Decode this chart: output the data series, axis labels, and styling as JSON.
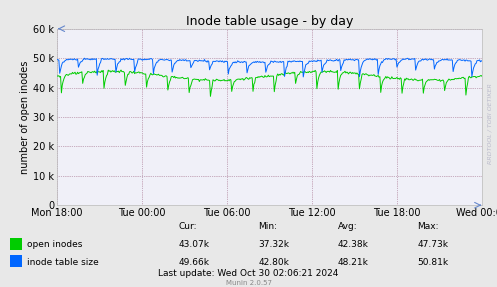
{
  "title": "Inode table usage - by day",
  "ylabel": "number of open inodes",
  "background_color": "#e8e8e8",
  "plot_bg_color": "#f0f0f8",
  "ylim": [
    0,
    60000
  ],
  "yticks": [
    0,
    10000,
    20000,
    30000,
    40000,
    50000,
    60000
  ],
  "xtick_labels": [
    "Mon 18:00",
    "Tue 00:00",
    "Tue 06:00",
    "Tue 12:00",
    "Tue 18:00",
    "Wed 00:00"
  ],
  "title_fontsize": 9,
  "label_fontsize": 7,
  "tick_fontsize": 7,
  "green_color": "#00cc00",
  "blue_color": "#0066ff",
  "watermark": "RRDTOOL / TOBI OETIKER",
  "munin_text": "Munin 2.0.57",
  "legend_open": "open inodes",
  "legend_table": "inode table size",
  "cur_open": "43.07k",
  "min_open": "37.32k",
  "avg_open": "42.38k",
  "max_open": "47.73k",
  "cur_table": "49.66k",
  "min_table": "42.80k",
  "avg_table": "48.21k",
  "max_table": "50.81k",
  "last_update": "Last update: Wed Oct 30 02:06:21 2024",
  "num_points": 500
}
